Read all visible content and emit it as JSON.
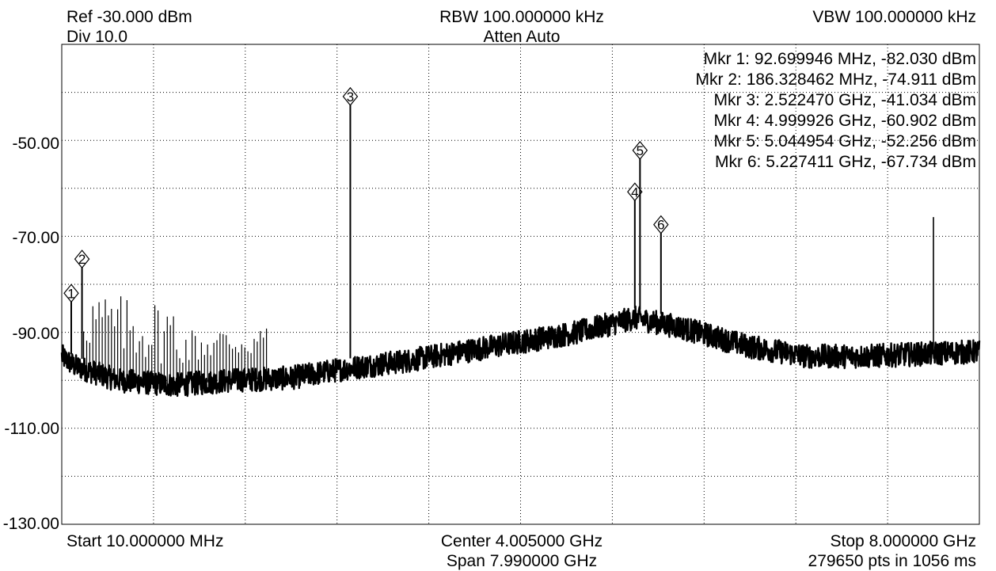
{
  "header": {
    "ref": "Ref -30.000 dBm",
    "div": "Div 10.0",
    "rbw": "RBW 100.000000 kHz",
    "atten": "Atten Auto",
    "vbw": "VBW 100.000000 kHz"
  },
  "footer": {
    "start": "Start 10.000000 MHz",
    "center": "Center 4.005000 GHz",
    "span": "Span 7.990000 GHz",
    "stop": "Stop 8.000000 GHz",
    "points": "279650 pts in 1056 ms"
  },
  "y_ticks": [
    "-50.00",
    "-70.00",
    "-90.00",
    "-110.00",
    "-130.00"
  ],
  "marker_readouts": [
    "Mkr 1: 92.699946 MHz, -82.030 dBm",
    "Mkr 2: 186.328462 MHz, -74.911 dBm",
    "Mkr 3: 2.522470 GHz, -41.034 dBm",
    "Mkr 4: 4.999926 GHz, -60.902 dBm",
    "Mkr 5: 5.044954 GHz, -52.256 dBm",
    "Mkr 6: 5.227411 GHz, -67.734 dBm"
  ],
  "chart_data": {
    "type": "line",
    "x_unit": "GHz",
    "y_unit": "dBm",
    "xlim": [
      0.01,
      8.0
    ],
    "ylim": [
      -130,
      -30
    ],
    "x_divisions": 10,
    "y_divisions": 10,
    "grid": true,
    "noise_floor": [
      {
        "x": 0.01,
        "y": -95
      },
      {
        "x": 0.12,
        "y": -97
      },
      {
        "x": 0.5,
        "y": -100
      },
      {
        "x": 1.0,
        "y": -101
      },
      {
        "x": 1.5,
        "y": -100
      },
      {
        "x": 2.0,
        "y": -99.5
      },
      {
        "x": 2.5,
        "y": -97.5
      },
      {
        "x": 3.0,
        "y": -96
      },
      {
        "x": 3.5,
        "y": -94
      },
      {
        "x": 4.0,
        "y": -92
      },
      {
        "x": 4.5,
        "y": -90
      },
      {
        "x": 5.0,
        "y": -87
      },
      {
        "x": 5.4,
        "y": -89
      },
      {
        "x": 6.0,
        "y": -93
      },
      {
        "x": 6.5,
        "y": -95
      },
      {
        "x": 7.0,
        "y": -95
      },
      {
        "x": 7.5,
        "y": -94.5
      },
      {
        "x": 8.0,
        "y": -94
      }
    ],
    "markers": [
      {
        "id": "1",
        "x": 0.092699946,
        "y": -82.03
      },
      {
        "id": "2",
        "x": 0.186328462,
        "y": -74.911
      },
      {
        "id": "3",
        "x": 2.52247,
        "y": -41.034
      },
      {
        "id": "4",
        "x": 4.999926,
        "y": -60.902
      },
      {
        "id": "5",
        "x": 5.044954,
        "y": -52.256
      },
      {
        "id": "6",
        "x": 5.227411,
        "y": -67.734
      }
    ],
    "spurs": [
      {
        "x": 7.6,
        "y": -66
      }
    ]
  }
}
